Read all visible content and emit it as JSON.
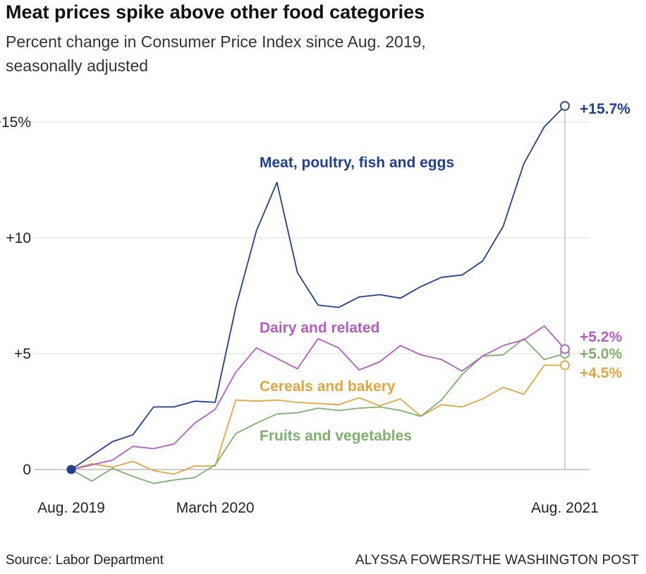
{
  "header": {
    "title": "Meat prices spike above other food categories",
    "subtitle": "Percent change in Consumer Price Index since Aug. 2019, seasonally adjusted"
  },
  "footer": {
    "source": "Source: Labor Department",
    "credit": "ALYSSA FOWERS/THE WASHINGTON POST"
  },
  "chart_data": {
    "type": "line",
    "title": "Meat prices spike above other food categories",
    "subtitle": "Percent change in Consumer Price Index since Aug. 2019, seasonally adjusted",
    "xlabel": "",
    "ylabel": "",
    "x_count": 25,
    "x_ticks": [
      {
        "index": 0,
        "label": "Aug. 2019"
      },
      {
        "index": 7,
        "label": "March 2020"
      },
      {
        "index": 24,
        "label": "Aug. 2021"
      }
    ],
    "y_ticks": [
      {
        "value": 0,
        "label": "0"
      },
      {
        "value": 5,
        "label": "+5"
      },
      {
        "value": 10,
        "label": "+10"
      },
      {
        "value": 15,
        "label": "+15%"
      }
    ],
    "ylim": [
      -1.2,
      16.8
    ],
    "grid": true,
    "series": [
      {
        "name": "Meat, poultry, fish and eggs",
        "color": "#1f3f8f",
        "values": [
          0,
          0.6,
          1.2,
          1.5,
          2.7,
          2.7,
          2.95,
          2.9,
          7.0,
          10.3,
          12.4,
          8.5,
          7.1,
          7.0,
          7.45,
          7.55,
          7.4,
          7.9,
          8.3,
          8.4,
          9.0,
          10.5,
          13.2,
          14.8,
          15.7
        ],
        "end_label": "+15.7%"
      },
      {
        "name": "Dairy and related",
        "color": "#b25cc4",
        "values": [
          0,
          0.2,
          0.4,
          1.0,
          0.9,
          1.1,
          2.0,
          2.6,
          4.2,
          5.25,
          4.8,
          4.35,
          5.65,
          5.25,
          4.3,
          4.65,
          5.35,
          4.95,
          4.75,
          4.25,
          4.9,
          5.35,
          5.6,
          6.2,
          5.2
        ],
        "end_label": "+5.2%"
      },
      {
        "name": "Fruits and vegetables",
        "color": "#7faf6c",
        "values": [
          0,
          -0.5,
          0.05,
          -0.3,
          -0.6,
          -0.45,
          -0.35,
          0.2,
          1.55,
          2.0,
          2.4,
          2.45,
          2.65,
          2.55,
          2.65,
          2.7,
          2.55,
          2.3,
          3.0,
          4.1,
          4.9,
          4.95,
          5.65,
          4.75,
          5.0
        ],
        "end_label": "+5.0%"
      },
      {
        "name": "Cereals and bakery",
        "color": "#e3a53f",
        "values": [
          0,
          0.25,
          0.1,
          0.35,
          -0.05,
          -0.2,
          0.15,
          0.15,
          3.0,
          2.95,
          3.0,
          2.9,
          2.85,
          2.8,
          3.1,
          2.75,
          3.05,
          2.3,
          2.8,
          2.7,
          3.05,
          3.55,
          3.25,
          4.5,
          4.5
        ],
        "end_label": "+4.5%"
      }
    ]
  }
}
